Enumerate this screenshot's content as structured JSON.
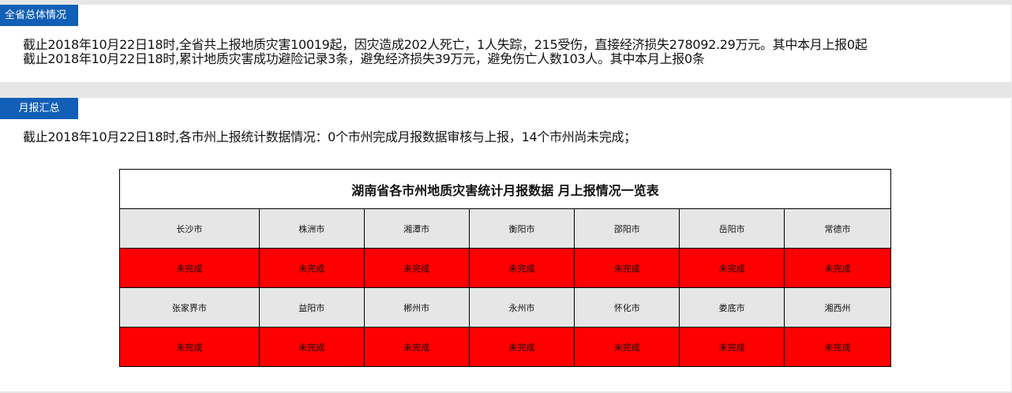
{
  "overview": {
    "tag": "全省总体情况",
    "lines": [
      "截止2018年10月22日18时,全省共上报地质灾害10019起，因灾造成202人死亡，1人失踪，215受伤，直接经济损失278092.29万元。其中本月上报0起",
      "截止2018年10月22日18时,累计地质灾害成功避险记录3条，避免经济损失39万元，避免伤亡人数103人。其中本月上报0条"
    ]
  },
  "monthly": {
    "tag": "月报汇总",
    "summary": "截止2018年10月22日18时,各市州上报统计数据情况：0个市州完成月报数据审核与上报，14个市州尚未完成；",
    "table": {
      "title": "湖南省各市州地质灾害统计月报数据 月上报情况一览表",
      "rows": [
        {
          "cities": [
            "长沙市",
            "株洲市",
            "湘潭市",
            "衡阳市",
            "邵阳市",
            "岳阳市",
            "常德市"
          ],
          "status": [
            "未完成",
            "未完成",
            "未完成",
            "未完成",
            "未完成",
            "未完成",
            "未完成"
          ]
        },
        {
          "cities": [
            "张家界市",
            "益阳市",
            "郴州市",
            "永州市",
            "怀化市",
            "娄底市",
            "湘西州"
          ],
          "status": [
            "未完成",
            "未完成",
            "未完成",
            "未完成",
            "未完成",
            "未完成",
            "未完成"
          ]
        }
      ],
      "status_color": "#ff0000"
    }
  }
}
